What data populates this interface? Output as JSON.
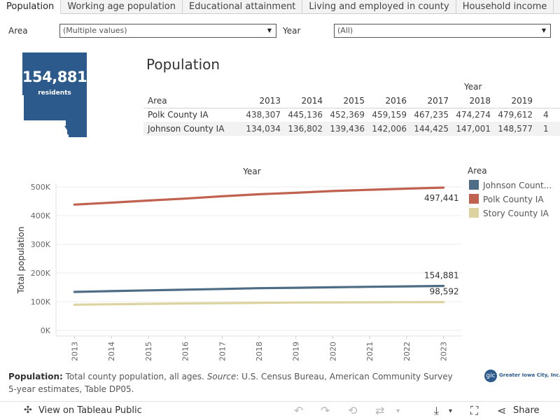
{
  "tabs": [
    "Population",
    "Working age population",
    "Educational attainment",
    "Living and employed in county",
    "Household income"
  ],
  "filters": {
    "area_label": "Area",
    "area_value": "(Multiple values)",
    "year_label": "Year",
    "year_value": "(All)"
  },
  "tile": {
    "value": "154,881",
    "unit": "residents",
    "color": "#2d5a8c"
  },
  "table": {
    "title": "Population",
    "year_header": "Year",
    "area_header": "Area",
    "years": [
      "2013",
      "2014",
      "2015",
      "2016",
      "2017",
      "2018",
      "2019"
    ],
    "rows": [
      {
        "area": "Polk County IA",
        "values": [
          "438,307",
          "445,136",
          "452,369",
          "459,159",
          "467,235",
          "474,274",
          "479,612"
        ],
        "overflow": "4"
      },
      {
        "area": "Johnson County IA",
        "values": [
          "134,034",
          "136,802",
          "139,436",
          "142,006",
          "144,425",
          "147,001",
          "148,577"
        ],
        "overflow": "1"
      }
    ]
  },
  "chart_data": {
    "type": "line",
    "title": "Year",
    "xlabel": "",
    "ylabel": "Total population",
    "x": [
      "2013",
      "2014",
      "2015",
      "2016",
      "2017",
      "2018",
      "2019",
      "2020",
      "2021",
      "2022",
      "2023"
    ],
    "yticks": [
      "0K",
      "100K",
      "200K",
      "300K",
      "400K",
      "500K"
    ],
    "ylim": [
      0,
      500000
    ],
    "legend_title": "Area",
    "series": [
      {
        "name": "Johnson County IA",
        "legend_label": "Johnson Count...",
        "color": "#4e6d85",
        "values": [
          134034,
          136802,
          139436,
          142006,
          144425,
          147001,
          148577,
          150200,
          152000,
          153500,
          154881
        ],
        "end_label": "154,881"
      },
      {
        "name": "Polk County IA",
        "legend_label": "Polk County IA",
        "color": "#c0624f",
        "values": [
          438307,
          445136,
          452369,
          459159,
          467235,
          474274,
          479612,
          485500,
          490000,
          494000,
          497441
        ],
        "end_label": "497,441"
      },
      {
        "name": "Story County IA",
        "legend_label": "Story County IA",
        "color": "#ddd3a0",
        "values": [
          89500,
          91000,
          92400,
          93800,
          95000,
          96200,
          97000,
          97500,
          97900,
          98300,
          98592
        ],
        "end_label": "98,592"
      }
    ]
  },
  "footnote": {
    "label": "Population:",
    "text1": " Total county population, all ages. ",
    "source_label": "Source",
    "text2": ": U.S. Census Bureau, American Community Survey 5-year estimates, Table DP05."
  },
  "logo": {
    "mark": "gic",
    "name": "Greater Iowa City, Inc."
  },
  "toolbar": {
    "view_label": "View on Tableau Public",
    "share_label": "Share"
  }
}
